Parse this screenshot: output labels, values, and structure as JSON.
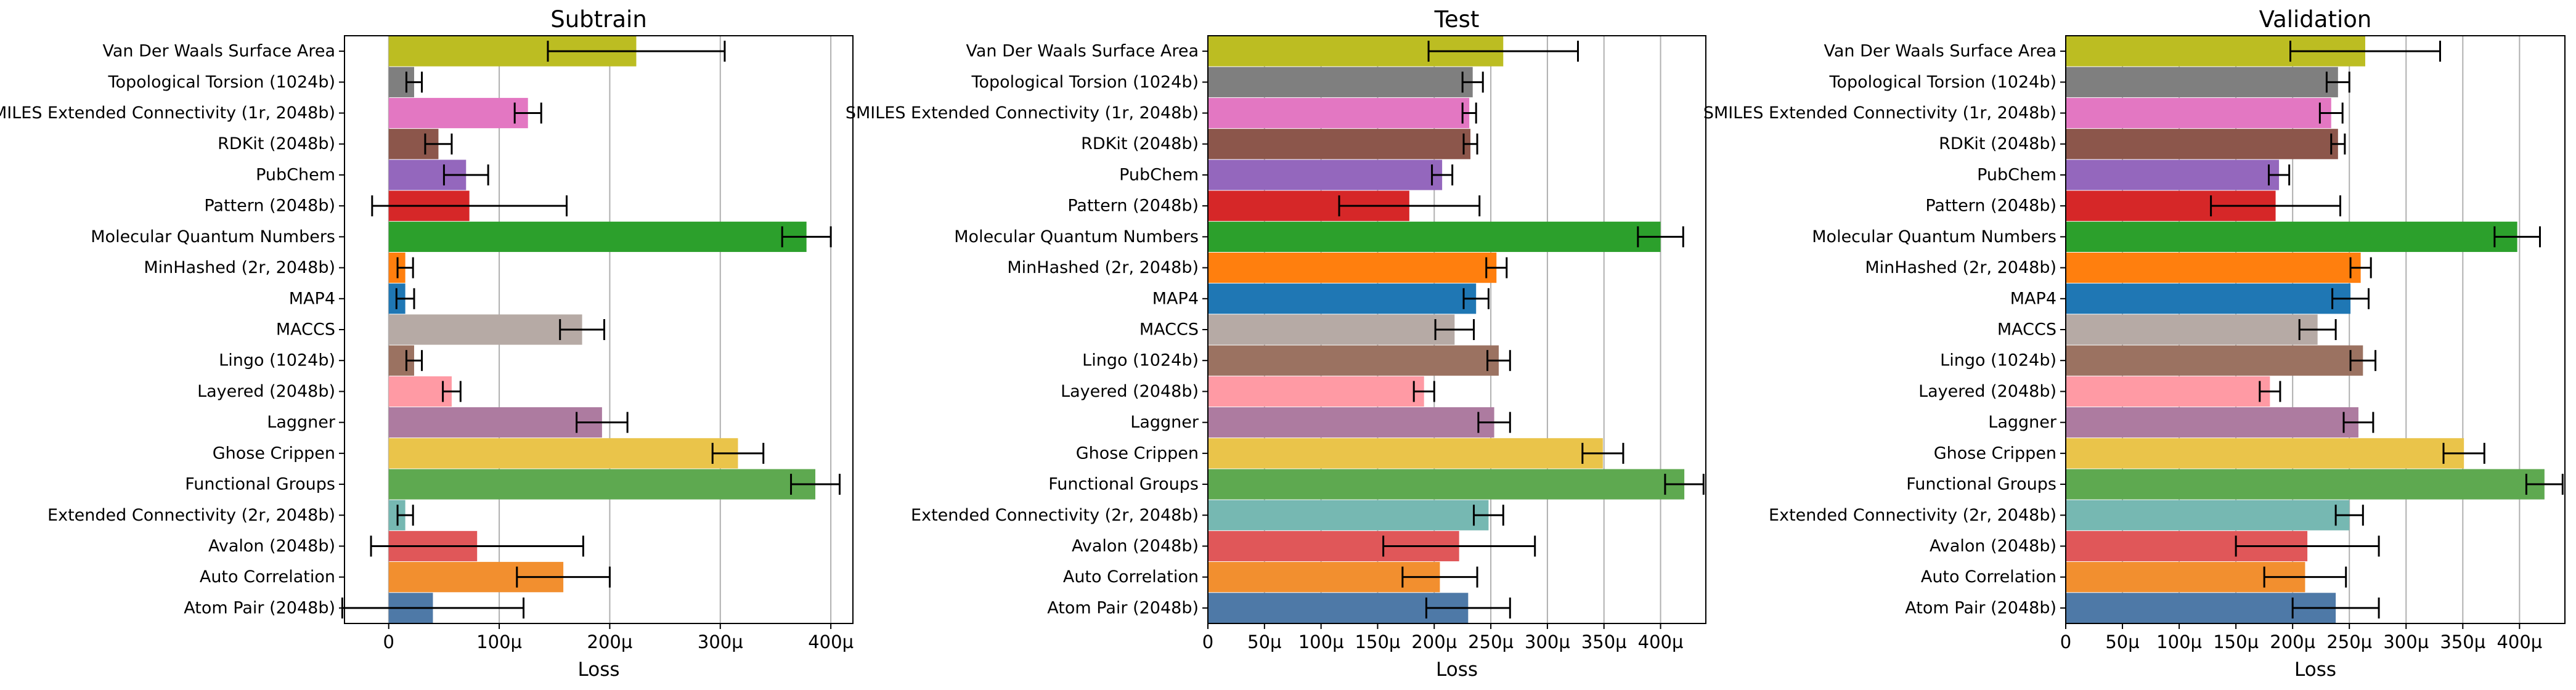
{
  "chart_data": [
    {
      "type": "bar",
      "orientation": "horizontal",
      "title": "Subtrain",
      "xlabel": "Loss",
      "ylabel": "",
      "xlim": [
        -4e-05,
        0.00042
      ],
      "xticks": [
        0,
        0.0001,
        0.0002,
        0.0003,
        0.0004
      ],
      "xtick_labels": [
        "0",
        "100µ",
        "200µ",
        "300µ",
        "400µ"
      ],
      "grid": "vertical",
      "categories": [
        "Van Der Waals Surface Area",
        "Topological Torsion (1024b)",
        "SMILES Extended Connectivity (1r, 2048b)",
        "RDKit (2048b)",
        "PubChem",
        "Pattern (2048b)",
        "Molecular Quantum Numbers",
        "MinHashed (2r, 2048b)",
        "MAP4",
        "MACCS",
        "Lingo (1024b)",
        "Layered (2048b)",
        "Laggner",
        "Ghose Crippen",
        "Functional Groups",
        "Extended Connectivity (2r, 2048b)",
        "Avalon (2048b)",
        "Auto Correlation",
        "Atom Pair (2048b)"
      ],
      "values": [
        0.000224,
        2.3e-05,
        0.000126,
        4.5e-05,
        7e-05,
        7.3e-05,
        0.000378,
        1.5e-05,
        1.5e-05,
        0.000175,
        2.3e-05,
        5.7e-05,
        0.000193,
        0.000316,
        0.000386,
        1.5e-05,
        8e-05,
        0.000158,
        4e-05
      ],
      "errors": [
        8e-05,
        7e-06,
        1.2e-05,
        1.2e-05,
        2e-05,
        8.8e-05,
        2.2e-05,
        7e-06,
        8e-06,
        2e-05,
        7e-06,
        8e-06,
        2.3e-05,
        2.3e-05,
        2.2e-05,
        7e-06,
        9.6e-05,
        4.2e-05,
        8.2e-05
      ],
      "colors": [
        "#bcbd22",
        "#7f7f7f",
        "#e377c2",
        "#8c564b",
        "#9467bd",
        "#d62728",
        "#2ca02c",
        "#ff7f0e",
        "#1f77b4",
        "#b6aaa5",
        "#9b7261",
        "#ff9aa4",
        "#ad7ba0",
        "#eac44a",
        "#5ea950",
        "#76b8b2",
        "#e05759",
        "#f28f2f",
        "#4e79a7"
      ]
    },
    {
      "type": "bar",
      "orientation": "horizontal",
      "title": "Test",
      "xlabel": "Loss",
      "ylabel": "",
      "xlim": [
        0,
        0.00044
      ],
      "xticks": [
        0,
        5e-05,
        0.0001,
        0.00015,
        0.0002,
        0.00025,
        0.0003,
        0.00035,
        0.0004
      ],
      "xtick_labels": [
        "0",
        "50µ",
        "100µ",
        "150µ",
        "200µ",
        "250µ",
        "300µ",
        "350µ",
        "400µ"
      ],
      "grid": "vertical",
      "categories": [
        "Van Der Waals Surface Area",
        "Topological Torsion (1024b)",
        "SMILES Extended Connectivity (1r, 2048b)",
        "RDKit (2048b)",
        "PubChem",
        "Pattern (2048b)",
        "Molecular Quantum Numbers",
        "MinHashed (2r, 2048b)",
        "MAP4",
        "MACCS",
        "Lingo (1024b)",
        "Layered (2048b)",
        "Laggner",
        "Ghose Crippen",
        "Functional Groups",
        "Extended Connectivity (2r, 2048b)",
        "Avalon (2048b)",
        "Auto Correlation",
        "Atom Pair (2048b)"
      ],
      "values": [
        0.000261,
        0.000234,
        0.000231,
        0.000232,
        0.000207,
        0.000178,
        0.0004,
        0.000255,
        0.000237,
        0.000218,
        0.000257,
        0.000191,
        0.000253,
        0.000349,
        0.000421,
        0.000248,
        0.000222,
        0.000205,
        0.00023
      ],
      "errors": [
        6.6e-05,
        9e-06,
        6e-06,
        6e-06,
        9e-06,
        6.2e-05,
        2e-05,
        9e-06,
        1.1e-05,
        1.7e-05,
        1e-05,
        9e-06,
        1.4e-05,
        1.8e-05,
        1.7e-05,
        1.3e-05,
        6.7e-05,
        3.3e-05,
        3.7e-05
      ],
      "colors": [
        "#bcbd22",
        "#7f7f7f",
        "#e377c2",
        "#8c564b",
        "#9467bd",
        "#d62728",
        "#2ca02c",
        "#ff7f0e",
        "#1f77b4",
        "#b6aaa5",
        "#9b7261",
        "#ff9aa4",
        "#ad7ba0",
        "#eac44a",
        "#5ea950",
        "#76b8b2",
        "#e05759",
        "#f28f2f",
        "#4e79a7"
      ]
    },
    {
      "type": "bar",
      "orientation": "horizontal",
      "title": "Validation",
      "xlabel": "Loss",
      "ylabel": "",
      "xlim": [
        0,
        0.00044
      ],
      "xticks": [
        0,
        5e-05,
        0.0001,
        0.00015,
        0.0002,
        0.00025,
        0.0003,
        0.00035,
        0.0004
      ],
      "xtick_labels": [
        "0",
        "50µ",
        "100µ",
        "150µ",
        "200µ",
        "250µ",
        "300µ",
        "350µ",
        "400µ"
      ],
      "grid": "vertical",
      "categories": [
        "Van Der Waals Surface Area",
        "Topological Torsion (1024b)",
        "SMILES Extended Connectivity (1r, 2048b)",
        "RDKit (2048b)",
        "PubChem",
        "Pattern (2048b)",
        "Molecular Quantum Numbers",
        "MinHashed (2r, 2048b)",
        "MAP4",
        "MACCS",
        "Lingo (1024b)",
        "Layered (2048b)",
        "Laggner",
        "Ghose Crippen",
        "Functional Groups",
        "Extended Connectivity (2r, 2048b)",
        "Avalon (2048b)",
        "Auto Correlation",
        "Atom Pair (2048b)"
      ],
      "values": [
        0.000264,
        0.00024,
        0.000234,
        0.00024,
        0.000188,
        0.000185,
        0.000398,
        0.00026,
        0.000251,
        0.000222,
        0.000262,
        0.00018,
        0.000258,
        0.000351,
        0.000422,
        0.00025,
        0.000213,
        0.000211,
        0.000238
      ],
      "errors": [
        6.6e-05,
        1e-05,
        1e-05,
        6e-06,
        9e-06,
        5.7e-05,
        2e-05,
        9e-06,
        1.6e-05,
        1.6e-05,
        1.1e-05,
        9e-06,
        1.3e-05,
        1.8e-05,
        1.6e-05,
        1.2e-05,
        6.3e-05,
        3.6e-05,
        3.8e-05
      ],
      "colors": [
        "#bcbd22",
        "#7f7f7f",
        "#e377c2",
        "#8c564b",
        "#9467bd",
        "#d62728",
        "#2ca02c",
        "#ff7f0e",
        "#1f77b4",
        "#b6aaa5",
        "#9b7261",
        "#ff9aa4",
        "#ad7ba0",
        "#eac44a",
        "#5ea950",
        "#76b8b2",
        "#e05759",
        "#f28f2f",
        "#4e79a7"
      ]
    }
  ]
}
